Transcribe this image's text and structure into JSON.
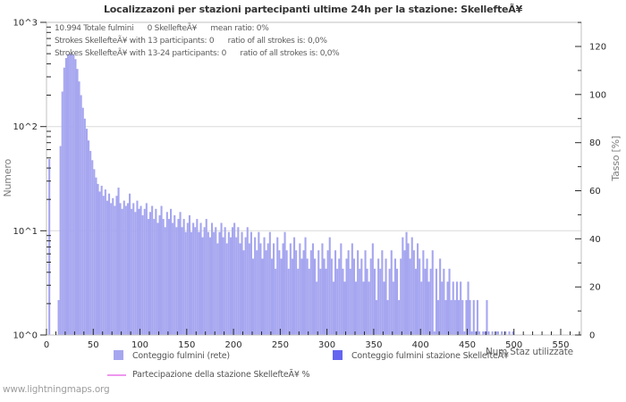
{
  "title": "Localizzazoni per stazioni partecipanti ultime 24h per la stazione: SkellefteÃ¥",
  "watermark": "www.lightningmaps.org",
  "annotations": {
    "line1": "10.994 Totale fulmini      0 SkellefteÃ¥      mean ratio: 0%",
    "line2": "Strokes SkellefteÃ¥ with 13 participants: 0      ratio of all strokes is: 0,0%",
    "line3": "Strokes SkellefteÃ¥ with 13-24 participants: 0      ratio of all strokes is: 0,0%"
  },
  "axes": {
    "left_title": "Numero",
    "right_title": "Tasso [%]",
    "x_title": "Num Staz utilizzate"
  },
  "legend": {
    "network_label": "Conteggio fulmini (rete)",
    "station_label": "Conteggio fulmini stazione SkellefteÃ¥",
    "participation_label": "Partecipazione della stazione SkellefteÃ¥ %",
    "network_color": "#a6a6f0",
    "station_color": "#6464f0",
    "participation_color": "#ee96ee"
  },
  "chart_data": {
    "type": "bar",
    "title": "Localizzazoni per stazioni partecipanti ultime 24h per la stazione: SkellefteÃ¥",
    "xlabel": "Num Staz utilizzate",
    "ylabel": "Numero",
    "ylabel_right": "Tasso [%]",
    "x_range": [
      0,
      575
    ],
    "y_scale_left": "log10",
    "y_range_left": [
      1,
      1000
    ],
    "y_range_right": [
      0,
      130
    ],
    "grid": "horizontal gridlines at 10^1 and 10^2",
    "legend_position": "below",
    "left_tick_labels": [
      "10^0",
      "10^1",
      "10^2",
      "10^3"
    ],
    "x_ticks": [
      0,
      50,
      100,
      150,
      200,
      250,
      300,
      350,
      400,
      450,
      500,
      550
    ],
    "right_ticks": [
      0,
      20,
      40,
      60,
      80,
      100,
      120
    ],
    "stats": {
      "total_strokes": "10.994",
      "station_strokes": 0,
      "mean_ratio_percent": 0
    },
    "series": [
      {
        "name": "Conteggio fulmini (rete)",
        "color": "#a6a6f0",
        "x_start": 0,
        "bin_width": 2,
        "values": [
          0,
          45,
          0,
          0,
          0,
          0,
          2,
          60,
          200,
          340,
          420,
          455,
          465,
          460,
          450,
          410,
          330,
          250,
          185,
          140,
          110,
          88,
          68,
          54,
          44,
          36,
          30,
          26,
          22,
          25,
          20,
          23,
          18,
          21,
          17,
          19,
          16,
          20,
          24,
          17,
          15,
          18,
          16,
          17,
          21,
          15,
          17,
          14,
          18,
          15,
          16,
          13,
          15,
          17,
          12,
          14,
          16,
          12,
          15,
          11,
          13,
          16,
          12,
          10,
          14,
          12,
          15,
          11,
          13,
          10,
          12,
          14,
          10,
          12,
          9,
          11,
          13,
          9,
          11,
          10,
          12,
          9,
          11,
          8,
          10,
          12,
          9,
          8,
          11,
          9,
          10,
          7,
          9,
          11,
          8,
          10,
          7,
          9,
          8,
          10,
          11,
          8,
          10,
          7,
          9,
          6,
          8,
          10,
          7,
          9,
          5,
          8,
          6,
          9,
          7,
          5,
          8,
          6,
          7,
          9,
          5,
          7,
          4,
          8,
          6,
          5,
          7,
          9,
          6,
          4,
          7,
          5,
          8,
          6,
          4,
          7,
          5,
          6,
          8,
          5,
          4,
          6,
          7,
          5,
          3,
          6,
          4,
          7,
          5,
          4,
          6,
          8,
          5,
          3,
          6,
          4,
          5,
          7,
          4,
          3,
          5,
          6,
          4,
          7,
          5,
          3,
          6,
          4,
          5,
          3,
          6,
          4,
          3,
          5,
          7,
          4,
          2,
          5,
          4,
          6,
          3,
          5,
          2,
          4,
          6,
          3,
          5,
          4,
          2,
          5,
          8,
          6,
          9,
          7,
          5,
          8,
          6,
          4,
          7,
          5,
          3,
          6,
          4,
          5,
          3,
          4,
          6,
          1,
          4,
          2,
          5,
          3,
          4,
          2,
          3,
          4,
          2,
          3,
          2,
          3,
          2,
          3,
          2,
          1,
          2,
          3,
          2,
          1,
          2,
          1,
          2,
          1,
          0,
          1,
          1,
          2,
          1,
          0,
          1,
          0,
          1,
          1,
          0,
          1,
          0,
          1,
          0,
          1,
          0,
          1,
          0,
          0,
          0,
          0,
          0,
          0,
          0,
          0,
          0,
          0,
          0,
          0,
          0,
          0,
          0,
          0,
          0,
          0,
          0,
          0,
          0,
          0,
          0,
          0,
          0,
          0,
          0,
          0,
          0,
          0,
          0,
          0,
          0,
          0,
          0,
          0
        ]
      },
      {
        "name": "Conteggio fulmini stazione SkellefteÃ¥",
        "color": "#6464f0",
        "constant_value": 0
      },
      {
        "name": "Partecipazione della stazione SkellefteÃ¥ %",
        "color": "#ee96ee",
        "type": "line",
        "constant_value": 0
      }
    ]
  }
}
